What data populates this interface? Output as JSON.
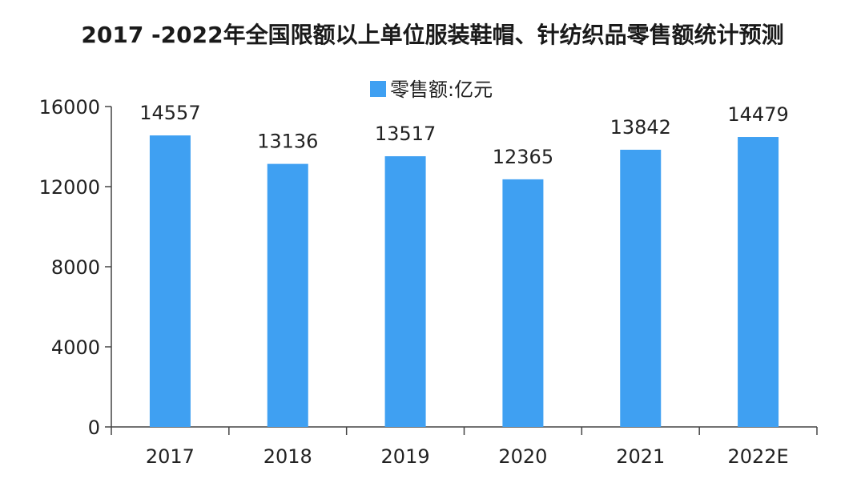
{
  "chart_data": {
    "type": "bar",
    "title": "2017 -2022年全国限额以上单位服装鞋帽、针纺织品零售额统计预测",
    "categories": [
      "2017",
      "2018",
      "2019",
      "2020",
      "2021",
      "2022E"
    ],
    "series": [
      {
        "name": "零售额:亿元",
        "values": [
          14557,
          13136,
          13517,
          12365,
          13842,
          14479
        ],
        "color": "#3fa0f2"
      }
    ],
    "data_labels": [
      "14557",
      "13136",
      "13517",
      "12365",
      "13842",
      "14479"
    ],
    "yticks": [
      0,
      4000,
      8000,
      12000,
      16000
    ],
    "ytick_labels": [
      "0",
      "4000",
      "8000",
      "12000",
      "16000"
    ],
    "ylim": [
      0,
      16000
    ],
    "xlabel": "",
    "ylabel": "",
    "grid": false,
    "legend": "top-center"
  }
}
